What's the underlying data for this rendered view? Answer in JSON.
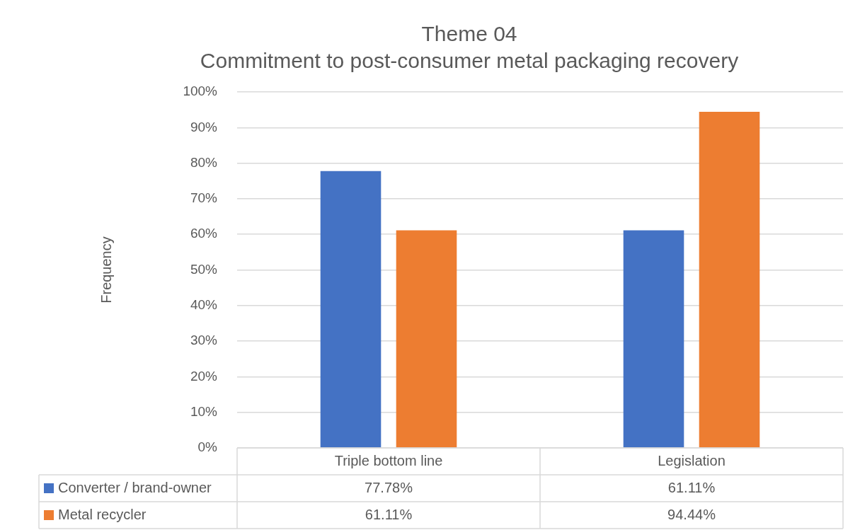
{
  "chart_data": {
    "type": "bar",
    "title": "Theme 04",
    "subtitle": "Commitment to post-consumer metal packaging recovery",
    "ylabel": "Frequency",
    "categories": [
      "Triple bottom line",
      "Legislation"
    ],
    "series": [
      {
        "name": "Converter / brand-owner",
        "color": "#4472c4",
        "values": [
          77.78,
          61.11
        ],
        "value_labels": [
          "77.78%",
          "61.11%"
        ]
      },
      {
        "name": "Metal recycler",
        "color": "#ed7d31",
        "values": [
          61.11,
          94.44
        ],
        "value_labels": [
          "61.11%",
          "94.44%"
        ]
      }
    ],
    "ylim": [
      0,
      100
    ],
    "yticks": [
      {
        "value": 0,
        "label": "0%"
      },
      {
        "value": 10,
        "label": "10%"
      },
      {
        "value": 20,
        "label": "20%"
      },
      {
        "value": 30,
        "label": "30%"
      },
      {
        "value": 40,
        "label": "40%"
      },
      {
        "value": 50,
        "label": "50%"
      },
      {
        "value": 60,
        "label": "60%"
      },
      {
        "value": 70,
        "label": "70%"
      },
      {
        "value": 80,
        "label": "80%"
      },
      {
        "value": 90,
        "label": "90%"
      },
      {
        "value": 100,
        "label": "100%"
      }
    ],
    "grid": "y",
    "legend": "bottom"
  }
}
